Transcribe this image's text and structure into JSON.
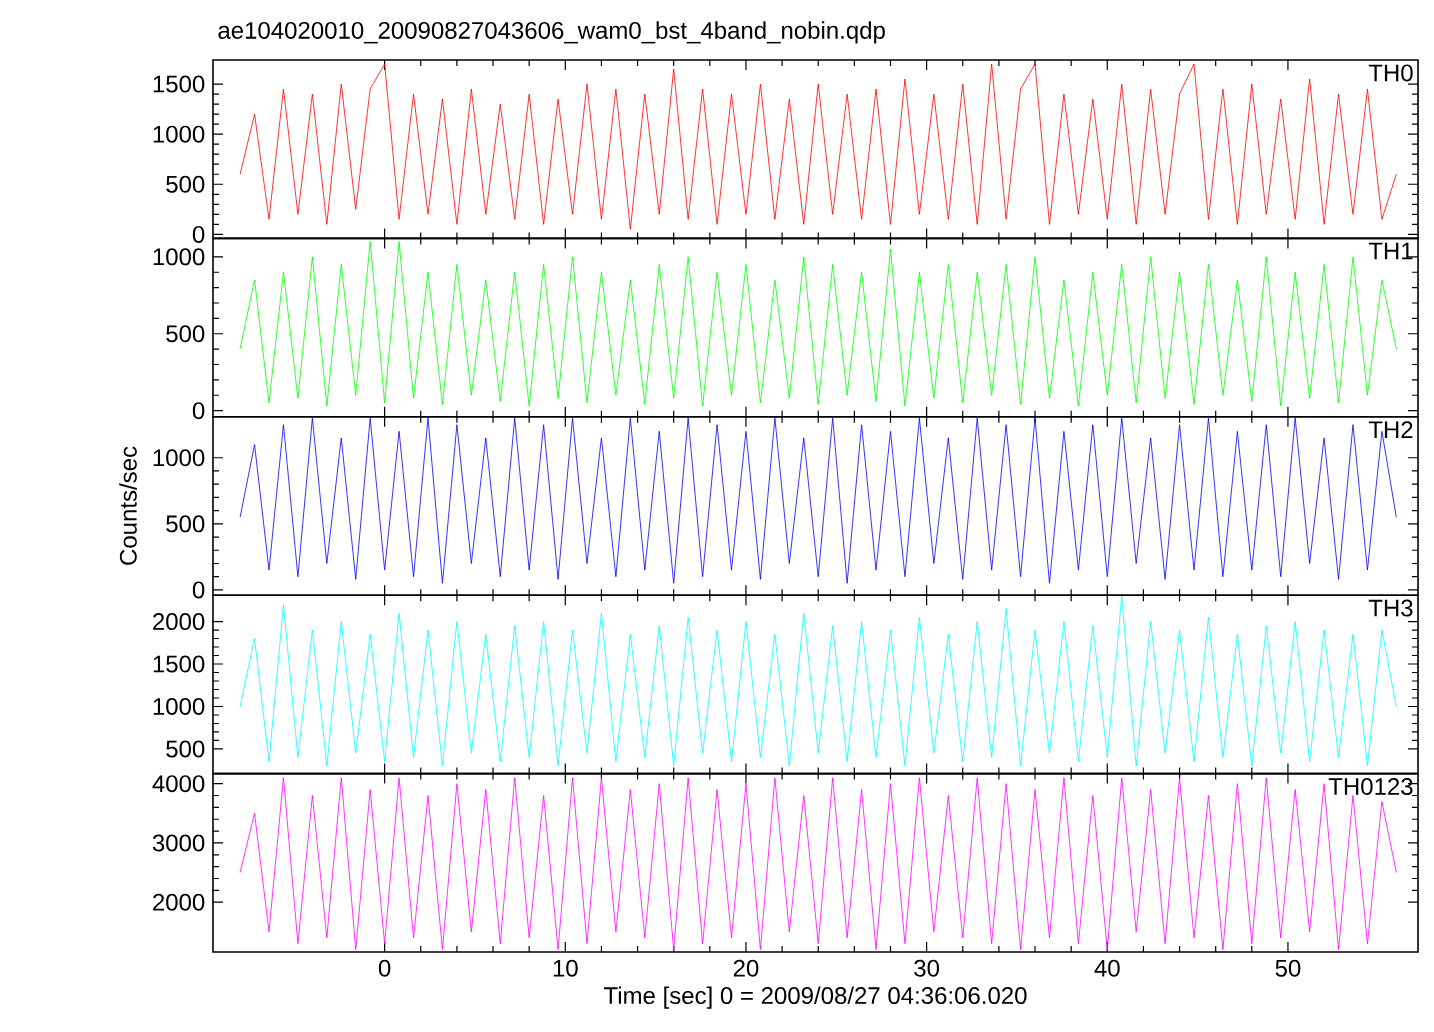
{
  "chart_data": [
    {
      "type": "line",
      "title": "ae104020010_20090827043606_wam0_bst_4band_nobin.qdp",
      "xlim": [
        -9.5,
        57.2
      ],
      "ylim": [
        -40,
        1740
      ],
      "xticks": [
        0,
        10,
        20,
        30,
        40,
        50
      ],
      "yticks": [
        0,
        500,
        1000,
        1500
      ],
      "tick_labels": "y",
      "x": [
        -8,
        -7.2,
        -6.4,
        -5.6,
        -4.8,
        -4,
        -3.2,
        -2.4,
        -1.6,
        -0.8,
        0,
        0.8,
        1.6,
        2.4,
        3.2,
        4,
        4.8,
        5.6,
        6.4,
        7.2,
        8,
        8.8,
        9.6,
        10.4,
        11.2,
        12,
        12.8,
        13.6,
        14.4,
        15.2,
        16,
        16.8,
        17.6,
        18.4,
        19.2,
        20,
        20.8,
        21.6,
        22.4,
        23.2,
        24,
        24.8,
        25.6,
        26.4,
        27.2,
        28,
        28.8,
        29.6,
        30.4,
        31.2,
        32,
        32.8,
        33.6,
        34.4,
        35.2,
        36,
        36.8,
        37.6,
        38.4,
        39.2,
        40,
        40.8,
        41.6,
        42.4,
        43.2,
        44,
        44.8,
        45.6,
        46.4,
        47.2,
        48,
        48.8,
        49.6,
        50.4,
        51.2,
        52,
        52.8,
        53.6,
        54.4,
        55.2,
        56
      ],
      "series": [
        {
          "name": "TH0",
          "color": "#ff0000",
          "values": [
            600,
            1200,
            150,
            1450,
            200,
            1400,
            100,
            1500,
            250,
            1450,
            1700,
            150,
            1400,
            200,
            1350,
            100,
            1450,
            200,
            1300,
            150,
            1400,
            100,
            1350,
            200,
            1500,
            150,
            1450,
            50,
            1400,
            200,
            1650,
            150,
            1450,
            100,
            1400,
            200,
            1500,
            150,
            1350,
            100,
            1500,
            200,
            1400,
            150,
            1450,
            100,
            1550,
            200,
            1400,
            150,
            1500,
            100,
            1700,
            150,
            1450,
            1700,
            100,
            1400,
            200,
            1350,
            150,
            1500,
            100,
            1450,
            200,
            1400,
            1700,
            150,
            1450,
            100,
            1500,
            200,
            1350,
            150,
            1550,
            100,
            1400,
            200,
            1450,
            150,
            600
          ]
        }
      ]
    },
    {
      "type": "line",
      "xlim": [
        -9.5,
        57.2
      ],
      "ylim": [
        -40,
        1120
      ],
      "xticks": [
        0,
        10,
        20,
        30,
        40,
        50
      ],
      "yticks": [
        0,
        500,
        1000
      ],
      "tick_labels": "y",
      "x": [
        -8,
        -7.2,
        -6.4,
        -5.6,
        -4.8,
        -4,
        -3.2,
        -2.4,
        -1.6,
        -0.8,
        0,
        0.8,
        1.6,
        2.4,
        3.2,
        4,
        4.8,
        5.6,
        6.4,
        7.2,
        8,
        8.8,
        9.6,
        10.4,
        11.2,
        12,
        12.8,
        13.6,
        14.4,
        15.2,
        16,
        16.8,
        17.6,
        18.4,
        19.2,
        20,
        20.8,
        21.6,
        22.4,
        23.2,
        24,
        24.8,
        25.6,
        26.4,
        27.2,
        28,
        28.8,
        29.6,
        30.4,
        31.2,
        32,
        32.8,
        33.6,
        34.4,
        35.2,
        36,
        36.8,
        37.6,
        38.4,
        39.2,
        40,
        40.8,
        41.6,
        42.4,
        43.2,
        44,
        44.8,
        45.6,
        46.4,
        47.2,
        48,
        48.8,
        49.6,
        50.4,
        51.2,
        52,
        52.8,
        53.6,
        54.4,
        55.2,
        56
      ],
      "series": [
        {
          "name": "TH1",
          "color": "#00ff00",
          "values": [
            400,
            850,
            50,
            900,
            80,
            1000,
            30,
            950,
            100,
            1100,
            50,
            1100,
            80,
            900,
            40,
            950,
            100,
            850,
            60,
            900,
            30,
            950,
            80,
            1000,
            50,
            900,
            100,
            850,
            40,
            950,
            80,
            1000,
            30,
            900,
            100,
            950,
            50,
            850,
            80,
            1000,
            40,
            950,
            100,
            900,
            60,
            1050,
            30,
            900,
            80,
            950,
            50,
            900,
            100,
            950,
            40,
            1000,
            80,
            850,
            30,
            900,
            100,
            950,
            50,
            1000,
            80,
            900,
            40,
            950,
            100,
            850,
            60,
            1000,
            30,
            900,
            80,
            950,
            50,
            1000,
            100,
            850,
            400
          ]
        }
      ]
    },
    {
      "type": "line",
      "ylabel": "Counts/sec",
      "xlim": [
        -9.5,
        57.2
      ],
      "ylim": [
        -40,
        1310
      ],
      "xticks": [
        0,
        10,
        20,
        30,
        40,
        50
      ],
      "yticks": [
        0,
        500,
        1000
      ],
      "tick_labels": "y",
      "x": [
        -8,
        -7.2,
        -6.4,
        -5.6,
        -4.8,
        -4,
        -3.2,
        -2.4,
        -1.6,
        -0.8,
        0,
        0.8,
        1.6,
        2.4,
        3.2,
        4,
        4.8,
        5.6,
        6.4,
        7.2,
        8,
        8.8,
        9.6,
        10.4,
        11.2,
        12,
        12.8,
        13.6,
        14.4,
        15.2,
        16,
        16.8,
        17.6,
        18.4,
        19.2,
        20,
        20.8,
        21.6,
        22.4,
        23.2,
        24,
        24.8,
        25.6,
        26.4,
        27.2,
        28,
        28.8,
        29.6,
        30.4,
        31.2,
        32,
        32.8,
        33.6,
        34.4,
        35.2,
        36,
        36.8,
        37.6,
        38.4,
        39.2,
        40,
        40.8,
        41.6,
        42.4,
        43.2,
        44,
        44.8,
        45.6,
        46.4,
        47.2,
        48,
        48.8,
        49.6,
        50.4,
        51.2,
        52,
        52.8,
        53.6,
        54.4,
        55.2,
        56
      ],
      "series": [
        {
          "name": "TH2",
          "color": "#0000ff",
          "values": [
            550,
            1100,
            150,
            1250,
            100,
            1300,
            200,
            1150,
            80,
            1300,
            150,
            1200,
            100,
            1300,
            50,
            1250,
            200,
            1150,
            100,
            1300,
            150,
            1250,
            80,
            1300,
            200,
            1150,
            100,
            1300,
            150,
            1200,
            50,
            1300,
            100,
            1250,
            150,
            1200,
            80,
            1300,
            200,
            1150,
            100,
            1300,
            50,
            1250,
            150,
            1200,
            100,
            1300,
            200,
            1150,
            80,
            1300,
            150,
            1250,
            100,
            1300,
            50,
            1200,
            150,
            1250,
            100,
            1300,
            200,
            1150,
            80,
            1250,
            150,
            1300,
            100,
            1200,
            150,
            1250,
            100,
            1300,
            200,
            1150,
            80,
            1250,
            150,
            1200,
            550
          ]
        }
      ]
    },
    {
      "type": "line",
      "xlim": [
        -9.5,
        57.2
      ],
      "ylim": [
        210,
        2310
      ],
      "xticks": [
        0,
        10,
        20,
        30,
        40,
        50
      ],
      "yticks": [
        500,
        1000,
        1500,
        2000
      ],
      "tick_labels": "y",
      "x": [
        -8,
        -7.2,
        -6.4,
        -5.6,
        -4.8,
        -4,
        -3.2,
        -2.4,
        -1.6,
        -0.8,
        0,
        0.8,
        1.6,
        2.4,
        3.2,
        4,
        4.8,
        5.6,
        6.4,
        7.2,
        8,
        8.8,
        9.6,
        10.4,
        11.2,
        12,
        12.8,
        13.6,
        14.4,
        15.2,
        16,
        16.8,
        17.6,
        18.4,
        19.2,
        20,
        20.8,
        21.6,
        22.4,
        23.2,
        24,
        24.8,
        25.6,
        26.4,
        27.2,
        28,
        28.8,
        29.6,
        30.4,
        31.2,
        32,
        32.8,
        33.6,
        34.4,
        35.2,
        36,
        36.8,
        37.6,
        38.4,
        39.2,
        40,
        40.8,
        41.6,
        42.4,
        43.2,
        44,
        44.8,
        45.6,
        46.4,
        47.2,
        48,
        48.8,
        49.6,
        50.4,
        51.2,
        52,
        52.8,
        53.6,
        54.4,
        55.2,
        56
      ],
      "series": [
        {
          "name": "TH3",
          "color": "#00ffff",
          "values": [
            1000,
            1800,
            350,
            2200,
            400,
            1900,
            300,
            2000,
            450,
            1850,
            350,
            2100,
            400,
            1900,
            300,
            2000,
            450,
            1850,
            350,
            1950,
            400,
            2000,
            300,
            1900,
            450,
            2100,
            350,
            1850,
            400,
            1950,
            300,
            2050,
            450,
            1900,
            350,
            2000,
            400,
            1850,
            300,
            2100,
            450,
            1950,
            350,
            2000,
            400,
            1900,
            300,
            2050,
            450,
            1850,
            350,
            2000,
            400,
            2150,
            300,
            1900,
            450,
            2000,
            350,
            1950,
            400,
            2300,
            300,
            2000,
            450,
            1900,
            350,
            2050,
            400,
            1850,
            300,
            1950,
            450,
            2000,
            350,
            1900,
            400,
            1850,
            300,
            1900,
            1000
          ]
        }
      ]
    },
    {
      "type": "line",
      "xlabel": "Time [sec] 0 = 2009/08/27 04:36:06.020",
      "xlim": [
        -9.5,
        57.2
      ],
      "ylim": [
        1160,
        4170
      ],
      "xticks": [
        0,
        10,
        20,
        30,
        40,
        50
      ],
      "yticks": [
        2000,
        3000,
        4000
      ],
      "x": [
        -8,
        -7.2,
        -6.4,
        -5.6,
        -4.8,
        -4,
        -3.2,
        -2.4,
        -1.6,
        -0.8,
        0,
        0.8,
        1.6,
        2.4,
        3.2,
        4,
        4.8,
        5.6,
        6.4,
        7.2,
        8,
        8.8,
        9.6,
        10.4,
        11.2,
        12,
        12.8,
        13.6,
        14.4,
        15.2,
        16,
        16.8,
        17.6,
        18.4,
        19.2,
        20,
        20.8,
        21.6,
        22.4,
        23.2,
        24,
        24.8,
        25.6,
        26.4,
        27.2,
        28,
        28.8,
        29.6,
        30.4,
        31.2,
        32,
        32.8,
        33.6,
        34.4,
        35.2,
        36,
        36.8,
        37.6,
        38.4,
        39.2,
        40,
        40.8,
        41.6,
        42.4,
        43.2,
        44,
        44.8,
        45.6,
        46.4,
        47.2,
        48,
        48.8,
        49.6,
        50.4,
        51.2,
        52,
        52.8,
        53.6,
        54.4,
        55.2,
        56
      ],
      "series": [
        {
          "name": "TH0123",
          "color": "#ff00ff",
          "values": [
            2500,
            3500,
            1500,
            4100,
            1300,
            3800,
            1400,
            4100,
            1200,
            3900,
            1300,
            4100,
            1400,
            3800,
            1200,
            4000,
            1500,
            3900,
            1300,
            4100,
            1400,
            3800,
            1200,
            4100,
            1300,
            4100,
            1500,
            3900,
            1400,
            4000,
            1200,
            4100,
            1300,
            3900,
            1400,
            4000,
            1200,
            4100,
            1500,
            3800,
            1300,
            4100,
            1400,
            3900,
            1200,
            4000,
            1300,
            4100,
            1500,
            3800,
            1400,
            4100,
            1300,
            4000,
            1200,
            3900,
            1400,
            4100,
            1300,
            3800,
            1200,
            4100,
            1500,
            3900,
            1300,
            4100,
            1400,
            3800,
            1200,
            4000,
            1300,
            4100,
            1400,
            3900,
            1500,
            4000,
            1200,
            3800,
            1300,
            3700,
            2500
          ]
        }
      ]
    }
  ]
}
